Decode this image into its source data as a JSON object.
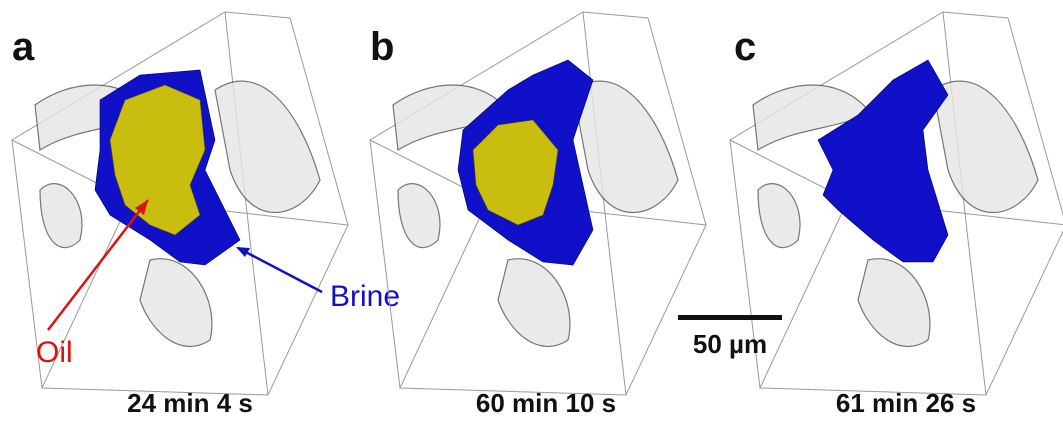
{
  "panels": [
    {
      "letter": "a",
      "time": "24 min 4 s"
    },
    {
      "letter": "b",
      "time": "60 min 10 s"
    },
    {
      "letter": "c",
      "time": "61 min 26 s"
    }
  ],
  "annotations": {
    "oil": "Oil",
    "brine": "Brine"
  },
  "scale_bar": {
    "label": "50 µm"
  }
}
